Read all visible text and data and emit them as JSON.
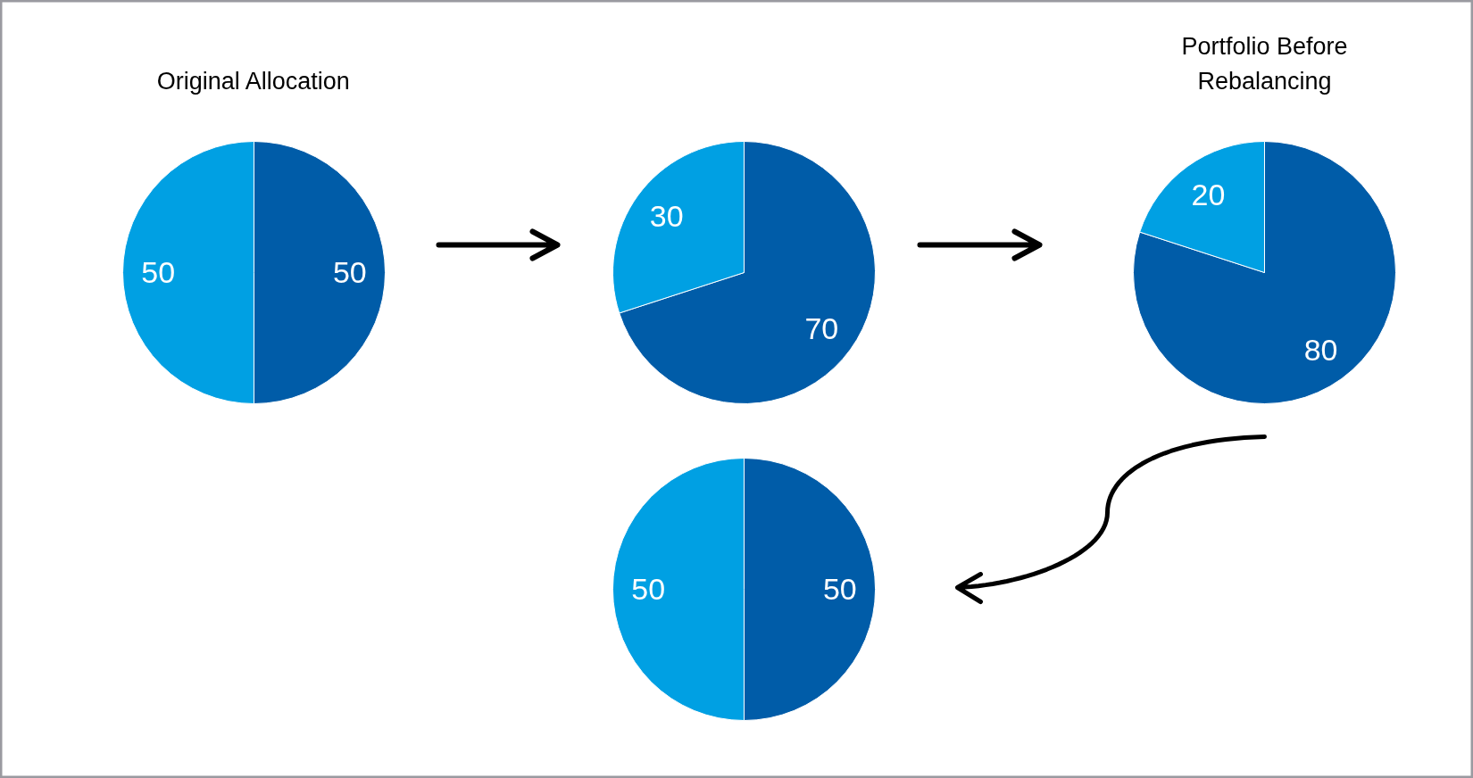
{
  "chart_data": [
    {
      "type": "pie",
      "title": "Original Allocation",
      "categories": [
        null,
        null
      ],
      "values": [
        50,
        50
      ],
      "colors": [
        "#005ca8",
        "#00a0e3"
      ],
      "data_labels": true
    },
    {
      "type": "pie",
      "categories": [
        null,
        null
      ],
      "values": [
        70,
        30
      ],
      "colors": [
        "#005ca8",
        "#00a0e3"
      ],
      "data_labels": true
    },
    {
      "type": "pie",
      "title": "Portfolio Before Rebalancing",
      "categories": [
        null,
        null
      ],
      "values": [
        80,
        20
      ],
      "colors": [
        "#005ca8",
        "#00a0e3"
      ],
      "data_labels": true
    },
    {
      "type": "pie",
      "categories": [
        null,
        null
      ],
      "values": [
        50,
        50
      ],
      "colors": [
        "#005ca8",
        "#00a0e3"
      ],
      "data_labels": true
    }
  ]
}
